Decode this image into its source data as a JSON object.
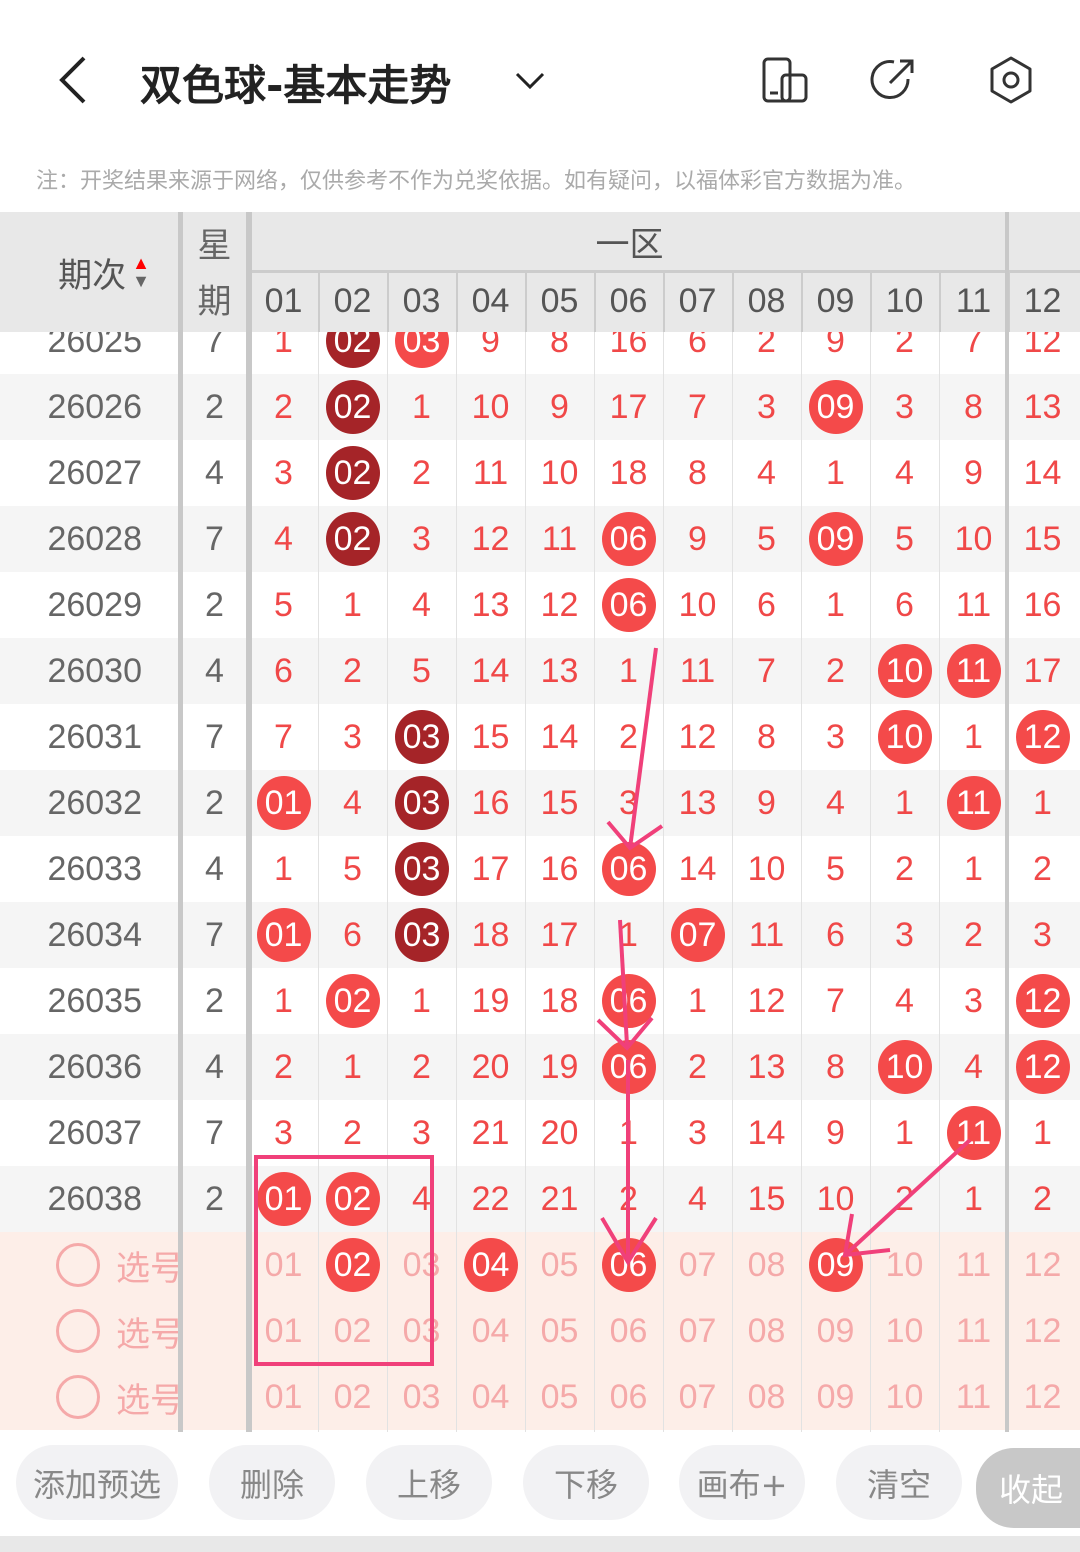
{
  "header": {
    "title": "双色球-基本走势"
  },
  "note": "注：开奖结果来源于网络，仅供参考不作为兑奖依据。如有疑问，以福体彩官方数据为准。",
  "table": {
    "col_period": "期次",
    "col_week_1": "星",
    "col_week_2": "期",
    "zone_label": "一区",
    "numbers": [
      "01",
      "02",
      "03",
      "04",
      "05",
      "06",
      "07",
      "08",
      "09",
      "10",
      "11",
      "12"
    ],
    "rows": [
      {
        "period": "26025",
        "week": "7",
        "cells": [
          "1",
          "02d",
          "03r",
          "9",
          "8",
          "16",
          "6",
          "2",
          "9",
          "2",
          "7",
          "12"
        ]
      },
      {
        "period": "26026",
        "week": "2",
        "cells": [
          "2",
          "02d",
          "1",
          "10",
          "9",
          "17",
          "7",
          "3",
          "09r",
          "3",
          "8",
          "13"
        ]
      },
      {
        "period": "26027",
        "week": "4",
        "cells": [
          "3",
          "02d",
          "2",
          "11",
          "10",
          "18",
          "8",
          "4",
          "1",
          "4",
          "9",
          "14"
        ]
      },
      {
        "period": "26028",
        "week": "7",
        "cells": [
          "4",
          "02d",
          "3",
          "12",
          "11",
          "06r",
          "9",
          "5",
          "09r",
          "5",
          "10",
          "15"
        ]
      },
      {
        "period": "26029",
        "week": "2",
        "cells": [
          "5",
          "1",
          "4",
          "13",
          "12",
          "06r",
          "10",
          "6",
          "1",
          "6",
          "11",
          "16"
        ]
      },
      {
        "period": "26030",
        "week": "4",
        "cells": [
          "6",
          "2",
          "5",
          "14",
          "13",
          "1",
          "11",
          "7",
          "2",
          "10r",
          "11r",
          "17"
        ]
      },
      {
        "period": "26031",
        "week": "7",
        "cells": [
          "7",
          "3",
          "03d",
          "15",
          "14",
          "2",
          "12",
          "8",
          "3",
          "10r",
          "1",
          "12r"
        ]
      },
      {
        "period": "26032",
        "week": "2",
        "cells": [
          "01r",
          "4",
          "03d",
          "16",
          "15",
          "3",
          "13",
          "9",
          "4",
          "1",
          "11r",
          "1"
        ]
      },
      {
        "period": "26033",
        "week": "4",
        "cells": [
          "1",
          "5",
          "03d",
          "17",
          "16",
          "06r",
          "14",
          "10",
          "5",
          "2",
          "1",
          "2"
        ]
      },
      {
        "period": "26034",
        "week": "7",
        "cells": [
          "01r",
          "6",
          "03d",
          "18",
          "17",
          "1",
          "07r",
          "11",
          "6",
          "3",
          "2",
          "3"
        ]
      },
      {
        "period": "26035",
        "week": "2",
        "cells": [
          "1",
          "02r",
          "1",
          "19",
          "18",
          "06r",
          "1",
          "12",
          "7",
          "4",
          "3",
          "12r"
        ]
      },
      {
        "period": "26036",
        "week": "4",
        "cells": [
          "2",
          "1",
          "2",
          "20",
          "19",
          "06r",
          "2",
          "13",
          "8",
          "10r",
          "4",
          "12r"
        ]
      },
      {
        "period": "26037",
        "week": "7",
        "cells": [
          "3",
          "2",
          "3",
          "21",
          "20",
          "1",
          "3",
          "14",
          "9",
          "1",
          "11r",
          "1"
        ]
      },
      {
        "period": "26038",
        "week": "2",
        "cells": [
          "01r",
          "02r",
          "4",
          "22",
          "21",
          "2",
          "4",
          "15",
          "10",
          "2",
          "1",
          "2"
        ]
      }
    ],
    "pick_label": "选号",
    "picks": [
      {
        "selected": [
          "02",
          "04",
          "06",
          "09"
        ]
      },
      {
        "selected": []
      },
      {
        "selected": []
      }
    ]
  },
  "buttons": [
    "添加预选",
    "删除",
    "上移",
    "下移",
    "画布+",
    "清空",
    "收起"
  ],
  "colors": {
    "ball_red": "#f44a4a",
    "ball_dark": "#a52428",
    "annotation": "#f0407a",
    "pick_bg": "#fdeee8",
    "pick_text": "#f5a9a9"
  }
}
